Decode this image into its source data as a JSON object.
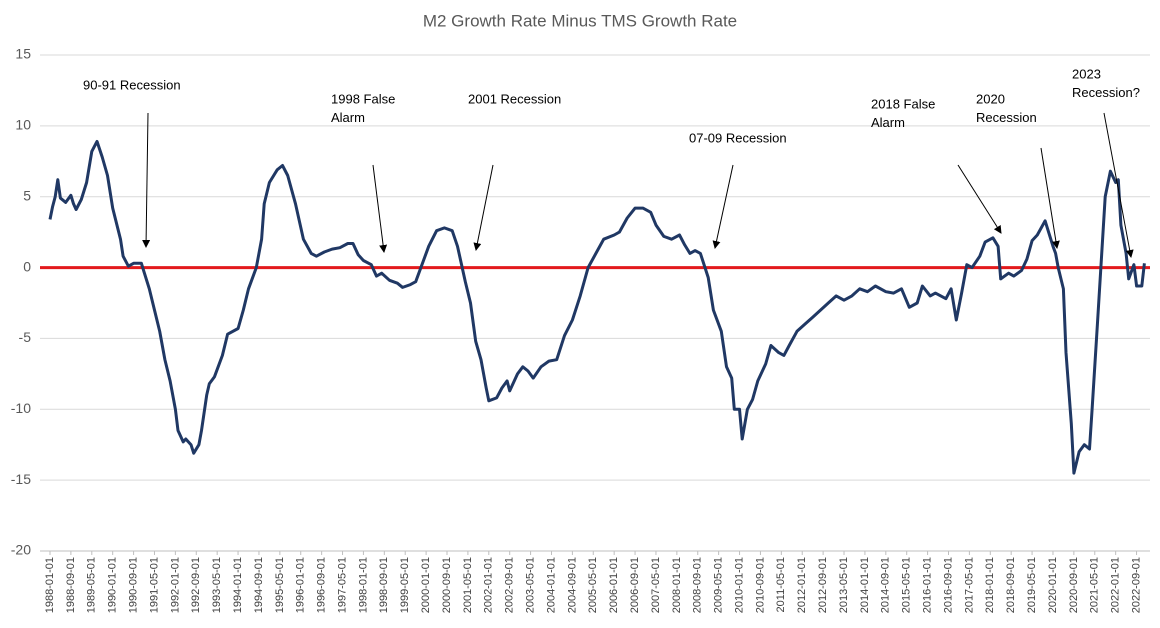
{
  "chart_data": {
    "type": "line",
    "title": "M2 Growth Rate Minus TMS Growth Rate",
    "xlim": [
      "1988-01-01",
      "2023-01-01"
    ],
    "xticks": [
      "1988-01-01",
      "1988-09-01",
      "1989-05-01",
      "1990-01-01",
      "1990-09-01",
      "1991-05-01",
      "1992-01-01",
      "1992-09-01",
      "1993-05-01",
      "1994-01-01",
      "1994-09-01",
      "1995-05-01",
      "1996-01-01",
      "1996-09-01",
      "1997-05-01",
      "1998-01-01",
      "1998-09-01",
      "1999-05-01",
      "2000-01-01",
      "2000-09-01",
      "2001-05-01",
      "2002-01-01",
      "2002-09-01",
      "2003-05-01",
      "2004-01-01",
      "2004-09-01",
      "2005-05-01",
      "2006-01-01",
      "2006-09-01",
      "2007-05-01",
      "2008-01-01",
      "2008-09-01",
      "2009-05-01",
      "2010-01-01",
      "2010-09-01",
      "2011-05-01",
      "2012-01-01",
      "2012-09-01",
      "2013-05-01",
      "2014-01-01",
      "2014-09-01",
      "2015-05-01",
      "2016-01-01",
      "2016-09-01",
      "2017-05-01",
      "2018-01-01",
      "2018-09-01",
      "2019-05-01",
      "2020-01-01",
      "2020-09-01",
      "2021-05-01",
      "2022-01-01",
      "2022-09-01"
    ],
    "ylim": [
      -20,
      15
    ],
    "yticks": [
      -20,
      -15,
      -10,
      -5,
      0,
      5,
      10,
      15
    ],
    "grid": true,
    "reference_line": {
      "value": 0,
      "color": "#e31a1c"
    },
    "x": [
      "1988-01-01",
      "1988-02-01",
      "1988-03-01",
      "1988-04-01",
      "1988-05-01",
      "1988-07-01",
      "1988-09-01",
      "1988-10-01",
      "1988-11-01",
      "1989-01-01",
      "1989-03-01",
      "1989-05-01",
      "1989-07-01",
      "1989-09-01",
      "1989-11-01",
      "1990-01-01",
      "1990-04-01",
      "1990-05-01",
      "1990-07-01",
      "1990-09-01",
      "1990-12-01",
      "1991-01-01",
      "1991-03-01",
      "1991-05-01",
      "1991-07-01",
      "1991-09-01",
      "1991-11-01",
      "1992-01-01",
      "1992-02-01",
      "1992-04-01",
      "1992-05-01",
      "1992-07-01",
      "1992-08-01",
      "1992-10-01",
      "1992-11-01",
      "1993-01-01",
      "1993-02-01",
      "1993-04-01",
      "1993-07-01",
      "1993-09-01",
      "1994-01-01",
      "1994-03-01",
      "1994-05-01",
      "1994-08-01",
      "1994-10-01",
      "1994-11-01",
      "1995-01-01",
      "1995-04-01",
      "1995-06-01",
      "1995-08-01",
      "1995-11-01",
      "1996-02-01",
      "1996-05-01",
      "1996-07-01",
      "1996-10-01",
      "1997-01-01",
      "1997-04-01",
      "1997-07-01",
      "1997-09-01",
      "1997-11-01",
      "1998-01-01",
      "1998-04-01",
      "1998-06-01",
      "1998-08-01",
      "1998-11-01",
      "1999-02-01",
      "1999-04-01",
      "1999-07-01",
      "1999-09-01",
      "1999-12-01",
      "2000-02-01",
      "2000-05-01",
      "2000-08-01",
      "2000-11-01",
      "2001-01-01",
      "2001-04-01",
      "2001-06-01",
      "2001-08-01",
      "2001-10-01",
      "2001-12-01",
      "2002-01-01",
      "2002-04-01",
      "2002-06-01",
      "2002-08-01",
      "2002-09-01",
      "2002-12-01",
      "2003-02-01",
      "2003-04-01",
      "2003-06-01",
      "2003-09-01",
      "2003-12-01",
      "2004-03-01",
      "2004-06-01",
      "2004-09-01",
      "2004-12-01",
      "2005-03-01",
      "2005-06-01",
      "2005-09-01",
      "2006-01-01",
      "2006-03-01",
      "2006-06-01",
      "2006-09-01",
      "2006-12-01",
      "2007-03-01",
      "2007-05-01",
      "2007-08-01",
      "2007-11-01",
      "2008-02-01",
      "2008-04-01",
      "2008-06-01",
      "2008-08-01",
      "2008-10-01",
      "2009-01-01",
      "2009-03-01",
      "2009-06-01",
      "2009-08-01",
      "2009-10-01",
      "2009-11-01",
      "2010-01-01",
      "2010-02-01",
      "2010-04-01",
      "2010-06-01",
      "2010-08-01",
      "2010-11-01",
      "2011-01-01",
      "2011-04-01",
      "2011-06-01",
      "2011-08-01",
      "2011-11-01",
      "2012-02-01",
      "2012-05-01",
      "2012-08-01",
      "2012-11-01",
      "2013-02-01",
      "2013-05-01",
      "2013-08-01",
      "2013-11-01",
      "2014-02-01",
      "2014-05-01",
      "2014-09-01",
      "2014-12-01",
      "2015-03-01",
      "2015-06-01",
      "2015-09-01",
      "2015-11-01",
      "2016-02-01",
      "2016-04-01",
      "2016-08-01",
      "2016-10-01",
      "2016-12-01",
      "2017-02-01",
      "2017-04-01",
      "2017-06-01",
      "2017-09-01",
      "2017-11-01",
      "2018-02-01",
      "2018-04-01",
      "2018-05-01",
      "2018-08-01",
      "2018-10-01",
      "2019-01-01",
      "2019-03-01",
      "2019-05-01",
      "2019-07-01",
      "2019-10-01",
      "2020-01-01",
      "2020-02-01",
      "2020-03-01",
      "2020-05-01",
      "2020-06-01",
      "2020-08-01",
      "2020-09-01",
      "2020-11-01",
      "2021-01-01",
      "2021-03-01",
      "2021-04-01",
      "2021-06-01",
      "2021-08-01",
      "2021-09-01",
      "2021-11-01",
      "2022-01-01",
      "2022-02-01",
      "2022-03-01",
      "2022-05-01",
      "2022-06-01",
      "2022-08-01",
      "2022-09-01",
      "2022-11-01",
      "2022-12-01"
    ],
    "series": [
      {
        "name": "M2 Growth Rate Minus TMS Growth Rate",
        "color": "#203864",
        "values": [
          3.4,
          4.3,
          5.0,
          6.2,
          4.9,
          4.6,
          5.1,
          4.5,
          4.1,
          4.8,
          6.0,
          8.2,
          8.9,
          7.8,
          6.5,
          4.2,
          2.0,
          0.8,
          0.1,
          0.3,
          0.3,
          -0.3,
          -1.5,
          -3.0,
          -4.5,
          -6.5,
          -8,
          -10,
          -11.5,
          -12.3,
          -12.1,
          -12.5,
          -13.1,
          -12.5,
          -11.5,
          -9.0,
          -8.2,
          -7.7,
          -6.2,
          -4.7,
          -4.3,
          -3.0,
          -1.5,
          0,
          2.0,
          4.5,
          6.0,
          6.9,
          7.2,
          6.5,
          4.5,
          2.0,
          1.0,
          0.8,
          1.1,
          1.3,
          1.4,
          1.7,
          1.7,
          0.9,
          0.5,
          0.2,
          -0.6,
          -0.4,
          -0.9,
          -1.1,
          -1.4,
          -1.2,
          -1.0,
          0.5,
          1.5,
          2.6,
          2.8,
          2.6,
          1.5,
          -1.0,
          -2.5,
          -5.2,
          -6.5,
          -8.5,
          -9.4,
          -9.2,
          -8.5,
          -8.0,
          -8.7,
          -7.5,
          -7.0,
          -7.3,
          -7.8,
          -7.0,
          -6.6,
          -6.5,
          -4.8,
          -3.7,
          -2.0,
          0,
          1.0,
          2.0,
          2.3,
          2.5,
          3.5,
          4.2,
          4.2,
          3.9,
          3.0,
          2.2,
          2.0,
          2.3,
          1.6,
          1.0,
          1.2,
          1.0,
          -0.7,
          -3.0,
          -4.5,
          -7.0,
          -7.8,
          -10,
          -10,
          -12.1,
          -10,
          -9.3,
          -8.0,
          -6.8,
          -5.5,
          -6.0,
          -6.2,
          -5.5,
          -4.5,
          -4.0,
          -3.5,
          -3.0,
          -2.5,
          -2.0,
          -2.3,
          -2.0,
          -1.5,
          -1.7,
          -1.3,
          -1.7,
          -1.8,
          -1.5,
          -2.8,
          -2.5,
          -1.3,
          -2.0,
          -1.8,
          -2.2,
          -1.5,
          -3.7,
          -1.8,
          0.2,
          0,
          0.8,
          1.8,
          2.1,
          1.5,
          -0.8,
          -0.4,
          -0.6,
          -0.2,
          0.6,
          1.9,
          2.3,
          3.3,
          1.5,
          1.0,
          0,
          -1.5,
          -6,
          -11,
          -14.5,
          -13.0,
          -12.5,
          -12.8,
          -10,
          -4,
          2,
          5,
          6.8,
          6.0,
          6.2,
          3.0,
          1.0,
          -0.8,
          0.2,
          -1.3,
          -1.3,
          0.3
        ]
      }
    ],
    "annotations": [
      {
        "lines": [
          "90-91 Recession"
        ]
      },
      {
        "lines": [
          "1998 False",
          "Alarm"
        ]
      },
      {
        "lines": [
          "2001 Recession"
        ]
      },
      {
        "lines": [
          "07-09 Recession"
        ]
      },
      {
        "lines": [
          "2018 False",
          "Alarm"
        ]
      },
      {
        "lines": [
          "2020",
          "Recession"
        ]
      },
      {
        "lines": [
          "2023",
          "Recession?"
        ]
      }
    ]
  }
}
